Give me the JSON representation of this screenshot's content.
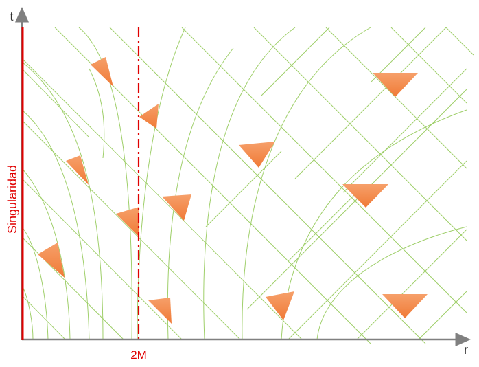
{
  "labels": {
    "t_axis": "t",
    "r_axis": "r",
    "horizon": "2M",
    "singularity": "Singularidad"
  },
  "colors": {
    "axis": "#808080",
    "singularity": "#e00000",
    "horizon": "#e00000",
    "lightcone_lines": "#8cc63f",
    "cone_fill": "#f28a4a"
  }
}
